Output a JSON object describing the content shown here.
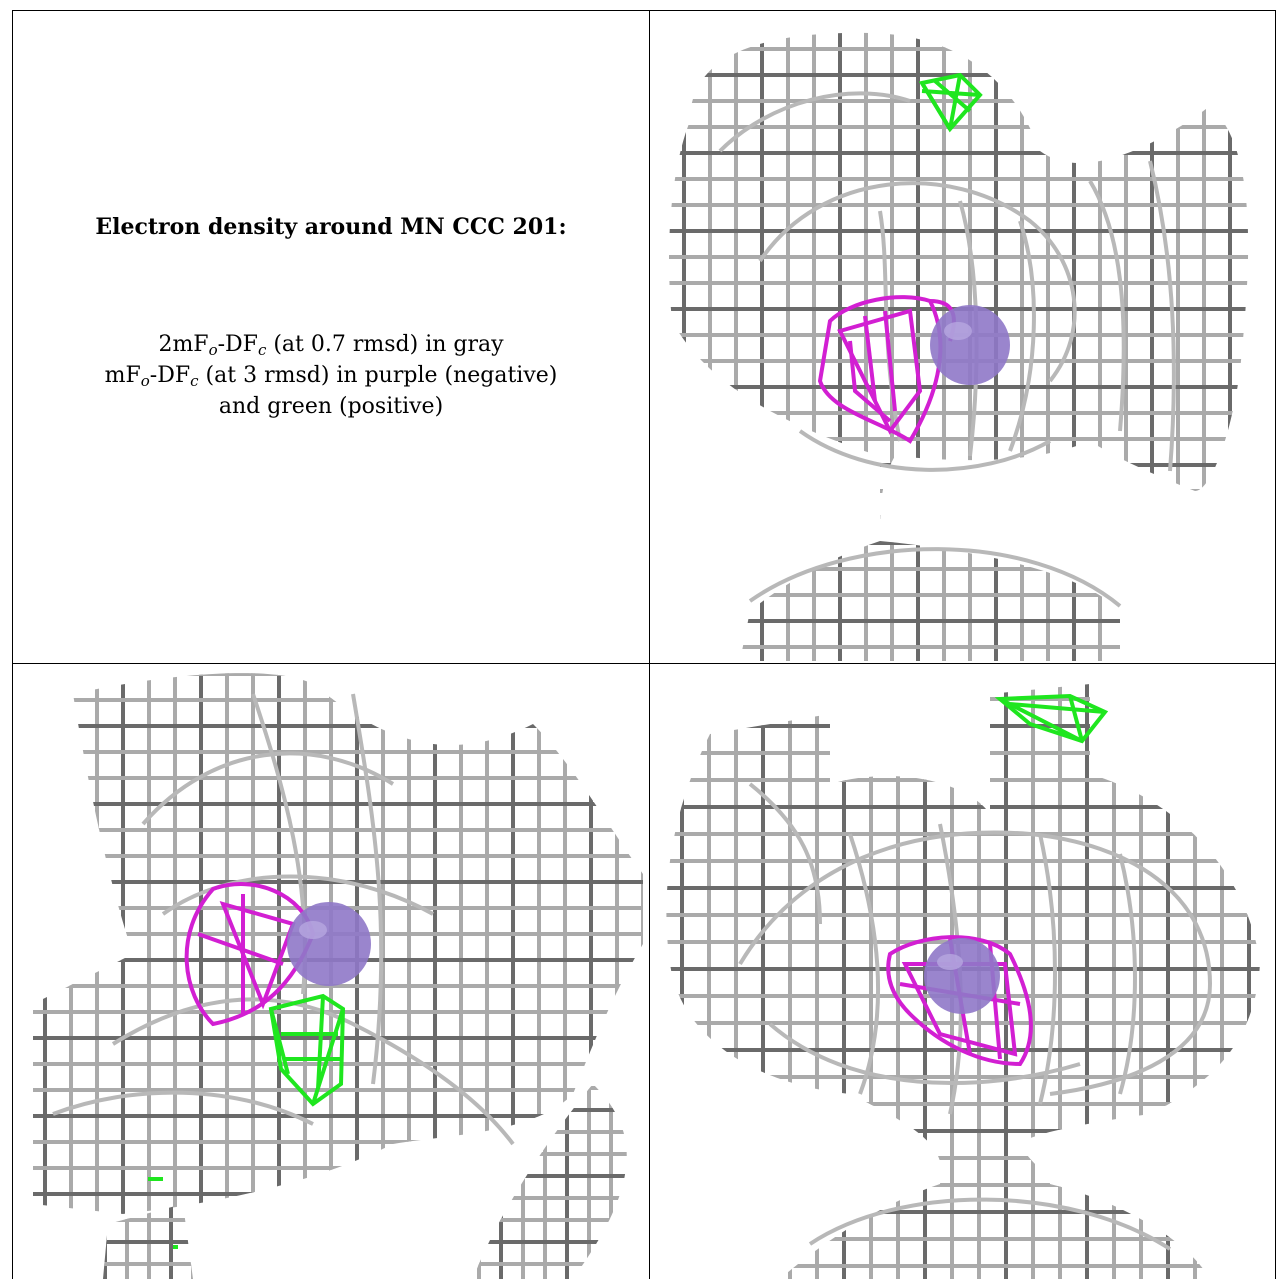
{
  "title": "Electron density around MN CCC 201:",
  "legend": {
    "line1_pre": "2mF",
    "line1_sub1": "o",
    "line1_mid": "-DF",
    "line1_sub2": "c",
    "line1_post": " (at 0.7 rmsd) in gray",
    "line2_pre": "mF",
    "line2_sub1": "o",
    "line2_mid": "-DF",
    "line2_sub2": "c",
    "line2_post": " (at 3 rmsd) in purple (negative)",
    "line3": "and green (positive)"
  },
  "colors": {
    "mesh_gray": "#a8a8a8",
    "mesh_dark": "#555555",
    "negative_purple": "#d21fd2",
    "positive_green": "#1fe61f",
    "atom_purple": "#8f78c8"
  },
  "panels": [
    {
      "name": "view-top-right"
    },
    {
      "name": "view-bottom-left"
    },
    {
      "name": "view-bottom-right"
    }
  ]
}
